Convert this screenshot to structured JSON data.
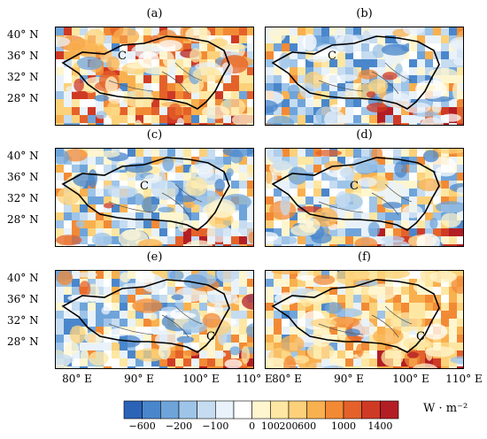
{
  "panels": [
    {
      "label": "(a)",
      "tone": "warm"
    },
    {
      "label": "(b)",
      "tone": "cool"
    },
    {
      "label": "(c)",
      "tone": "mixed"
    },
    {
      "label": "(d)",
      "tone": "mixed"
    },
    {
      "label": "(e)",
      "tone": "cool-west"
    },
    {
      "label": "(f)",
      "tone": "warm-east"
    }
  ],
  "lat_labels": [
    "40° N",
    "36° N",
    "32° N",
    "28° N"
  ],
  "lon_labels": [
    "80° E",
    "90° E",
    "100° E",
    "110° E"
  ],
  "marker_letter": "C",
  "colorbar": {
    "ticks": [
      "−600",
      "−200",
      "−100",
      "0",
      "100",
      "200",
      "600",
      "1000",
      "1400"
    ],
    "unit": "W · m⁻²",
    "colors": [
      "#2b63b6",
      "#4a86cb",
      "#6fa4da",
      "#9ec4e8",
      "#c6dcf1",
      "#e9f2fa",
      "#ffffff",
      "#fff6cf",
      "#fde7a3",
      "#fcd17a",
      "#f9b04f",
      "#f28a35",
      "#e4622a",
      "#cf3a25",
      "#b31e24"
    ]
  }
}
